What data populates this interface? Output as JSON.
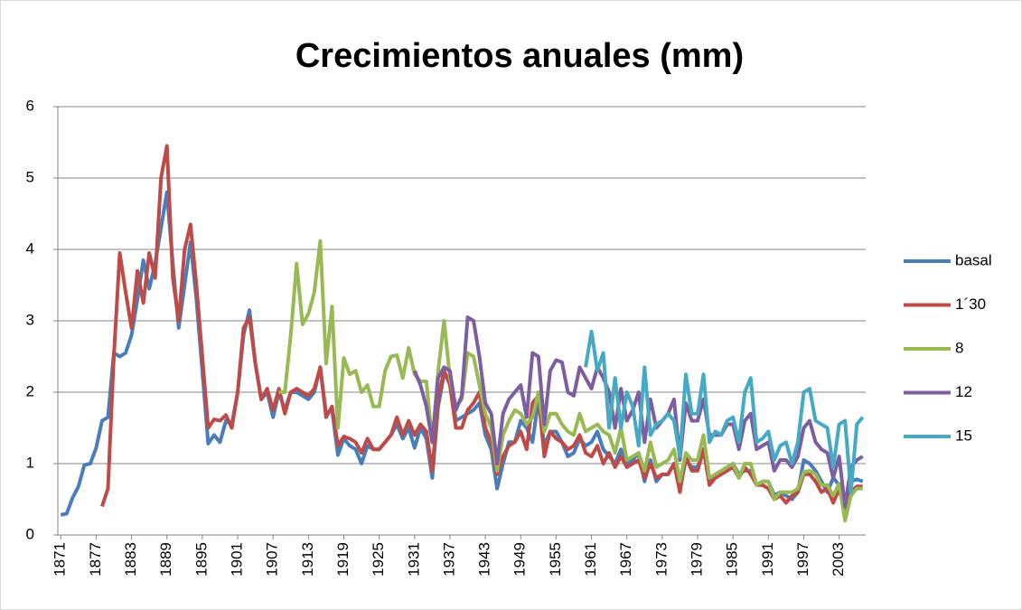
{
  "chart_data": {
    "type": "line",
    "title": "Crecimientos anuales (mm)",
    "x": [
      1871,
      1872,
      1873,
      1874,
      1875,
      1876,
      1877,
      1878,
      1879,
      1880,
      1881,
      1882,
      1883,
      1884,
      1885,
      1886,
      1887,
      1888,
      1889,
      1890,
      1891,
      1892,
      1893,
      1894,
      1895,
      1896,
      1897,
      1898,
      1899,
      1900,
      1901,
      1902,
      1903,
      1904,
      1905,
      1906,
      1907,
      1908,
      1909,
      1910,
      1911,
      1912,
      1913,
      1914,
      1915,
      1916,
      1917,
      1918,
      1919,
      1920,
      1921,
      1922,
      1923,
      1924,
      1925,
      1926,
      1927,
      1928,
      1929,
      1930,
      1931,
      1932,
      1933,
      1934,
      1935,
      1936,
      1937,
      1938,
      1939,
      1940,
      1941,
      1942,
      1943,
      1944,
      1945,
      1946,
      1947,
      1948,
      1949,
      1950,
      1951,
      1952,
      1953,
      1954,
      1955,
      1956,
      1957,
      1958,
      1959,
      1960,
      1961,
      1962,
      1963,
      1964,
      1965,
      1966,
      1967,
      1968,
      1969,
      1970,
      1971,
      1972,
      1973,
      1974,
      1975,
      1976,
      1977,
      1978,
      1979,
      1980,
      1981,
      1982,
      1983,
      1984,
      1985,
      1986,
      1987,
      1988,
      1989,
      1990,
      1991,
      1992,
      1993,
      1994,
      1995,
      1996,
      1997,
      1998,
      1999,
      2000,
      2001,
      2002,
      2003,
      2004,
      2005,
      2006,
      2007
    ],
    "xlim": [
      1870.5,
      2007.5
    ],
    "xticks": [
      1871,
      1877,
      1883,
      1889,
      1895,
      1901,
      1907,
      1913,
      1919,
      1925,
      1931,
      1937,
      1943,
      1949,
      1955,
      1961,
      1967,
      1973,
      1979,
      1985,
      1991,
      1997,
      2003
    ],
    "ylim": [
      0,
      6
    ],
    "yticks": [
      0,
      1,
      2,
      3,
      4,
      5,
      6
    ],
    "grid": true,
    "legend": "right",
    "series": [
      {
        "name": "basal",
        "color": "#4a7ebb",
        "values": [
          0.28,
          0.3,
          0.52,
          0.68,
          0.98,
          1.0,
          1.22,
          1.6,
          1.65,
          2.55,
          2.5,
          2.55,
          2.8,
          3.3,
          3.85,
          3.45,
          3.8,
          4.3,
          4.8,
          3.8,
          2.9,
          3.5,
          4.1,
          3.3,
          2.3,
          1.28,
          1.4,
          1.3,
          1.6,
          1.55,
          2.0,
          2.8,
          3.15,
          2.4,
          1.9,
          2.0,
          1.65,
          2.0,
          1.75,
          2.0,
          2.0,
          1.95,
          1.9,
          2.0,
          2.35,
          1.7,
          1.75,
          1.12,
          1.35,
          1.25,
          1.2,
          1.0,
          1.25,
          1.2,
          1.2,
          1.3,
          1.4,
          1.55,
          1.35,
          1.5,
          1.22,
          1.5,
          1.35,
          0.8,
          1.8,
          2.25,
          2.2,
          1.6,
          1.65,
          1.7,
          1.75,
          1.85,
          1.4,
          1.2,
          0.65,
          1.0,
          1.3,
          1.3,
          1.6,
          1.5,
          1.3,
          1.9,
          1.25,
          1.45,
          1.45,
          1.3,
          1.1,
          1.15,
          1.35,
          1.25,
          1.3,
          1.45,
          1.2,
          1.1,
          1.0,
          1.2,
          1.0,
          1.05,
          1.15,
          0.75,
          1.05,
          0.75,
          0.85,
          0.85,
          1.0,
          0.65,
          1.05,
          0.95,
          0.95,
          1.2,
          0.75,
          0.8,
          0.85,
          0.9,
          1.0,
          0.85,
          0.9,
          0.9,
          0.7,
          0.75,
          0.75,
          0.55,
          0.6,
          0.55,
          0.5,
          0.6,
          1.05,
          1.0,
          0.9,
          0.75,
          0.6,
          0.8,
          0.7,
          0.3,
          0.75,
          0.78,
          0.75
        ]
      },
      {
        "name": "1´30",
        "color": "#be4b48",
        "values": [
          null,
          null,
          null,
          null,
          null,
          null,
          null,
          0.4,
          0.65,
          2.5,
          3.95,
          3.4,
          2.9,
          3.7,
          3.25,
          3.95,
          3.6,
          5.0,
          5.45,
          3.6,
          3.0,
          4.0,
          4.35,
          3.5,
          2.5,
          1.5,
          1.62,
          1.6,
          1.68,
          1.5,
          2.0,
          2.9,
          3.05,
          2.4,
          1.9,
          2.05,
          1.75,
          2.05,
          1.7,
          2.0,
          2.05,
          2.0,
          1.95,
          2.05,
          2.35,
          1.65,
          1.8,
          1.25,
          1.38,
          1.35,
          1.3,
          1.15,
          1.35,
          1.2,
          1.2,
          1.3,
          1.4,
          1.65,
          1.4,
          1.6,
          1.4,
          1.55,
          1.45,
          0.9,
          1.9,
          2.3,
          2.1,
          1.5,
          1.5,
          1.75,
          1.85,
          2.0,
          1.5,
          1.3,
          0.85,
          1.1,
          1.25,
          1.3,
          1.45,
          1.2,
          1.85,
          1.95,
          1.1,
          1.45,
          1.35,
          1.3,
          1.2,
          1.25,
          1.4,
          1.15,
          1.1,
          1.25,
          1.0,
          1.15,
          0.95,
          1.1,
          0.95,
          1.0,
          1.05,
          0.8,
          1.0,
          0.8,
          0.85,
          0.85,
          1.0,
          0.6,
          1.1,
          0.9,
          0.9,
          1.2,
          0.7,
          0.8,
          0.85,
          0.9,
          0.95,
          0.8,
          0.95,
          0.85,
          0.7,
          0.7,
          0.65,
          0.5,
          0.55,
          0.45,
          0.55,
          0.6,
          0.85,
          0.85,
          0.75,
          0.6,
          0.65,
          0.45,
          0.65,
          0.3,
          0.6,
          0.68,
          0.68
        ]
      },
      {
        "name": "8",
        "color": "#98b954",
        "values": [
          null,
          null,
          null,
          null,
          null,
          null,
          null,
          null,
          null,
          null,
          null,
          null,
          null,
          null,
          null,
          null,
          null,
          null,
          null,
          null,
          null,
          null,
          null,
          null,
          null,
          null,
          null,
          null,
          null,
          null,
          null,
          null,
          null,
          null,
          null,
          null,
          null,
          2.0,
          2.0,
          2.8,
          3.8,
          2.95,
          3.1,
          3.4,
          4.12,
          2.4,
          3.2,
          1.5,
          2.48,
          2.25,
          2.3,
          2.0,
          2.1,
          1.8,
          1.8,
          2.3,
          2.5,
          2.52,
          2.2,
          2.62,
          2.25,
          2.15,
          2.15,
          1.3,
          2.3,
          3.0,
          2.2,
          1.8,
          1.9,
          2.55,
          2.5,
          2.1,
          1.7,
          1.5,
          0.9,
          1.4,
          1.6,
          1.75,
          1.7,
          1.55,
          1.65,
          2.0,
          1.45,
          1.7,
          1.7,
          1.55,
          1.45,
          1.4,
          1.7,
          1.45,
          1.5,
          1.55,
          1.45,
          1.4,
          1.15,
          1.5,
          1.05,
          1.1,
          1.15,
          0.9,
          1.3,
          0.95,
          1.0,
          1.05,
          1.2,
          0.75,
          1.15,
          1.05,
          1.05,
          1.4,
          0.8,
          0.85,
          0.9,
          0.95,
          1.0,
          0.8,
          1.0,
          1.0,
          0.7,
          0.75,
          0.75,
          0.5,
          0.6,
          0.6,
          0.6,
          0.65,
          0.88,
          0.9,
          0.85,
          0.7,
          0.7,
          0.55,
          0.72,
          0.2,
          0.55,
          0.65,
          0.65
        ]
      },
      {
        "name": "12",
        "color": "#7d5fa0",
        "values": [
          null,
          null,
          null,
          null,
          null,
          null,
          null,
          null,
          null,
          null,
          null,
          null,
          null,
          null,
          null,
          null,
          null,
          null,
          null,
          null,
          null,
          null,
          null,
          null,
          null,
          null,
          null,
          null,
          null,
          null,
          null,
          null,
          null,
          null,
          null,
          null,
          null,
          null,
          null,
          null,
          null,
          null,
          null,
          null,
          null,
          null,
          null,
          null,
          null,
          null,
          null,
          null,
          null,
          null,
          null,
          null,
          null,
          null,
          null,
          null,
          2.3,
          2.1,
          1.8,
          1.3,
          2.2,
          2.35,
          2.3,
          1.75,
          1.95,
          3.05,
          3.0,
          2.5,
          1.85,
          1.7,
          1.0,
          1.7,
          1.9,
          2.0,
          2.1,
          1.65,
          2.55,
          2.5,
          1.55,
          2.3,
          2.45,
          2.42,
          2.0,
          1.95,
          2.35,
          2.2,
          2.05,
          2.35,
          2.2,
          2.0,
          1.5,
          2.05,
          1.6,
          1.75,
          2.0,
          1.3,
          1.9,
          1.5,
          1.6,
          1.7,
          1.9,
          1.05,
          1.85,
          1.6,
          1.6,
          1.9,
          1.4,
          1.4,
          1.4,
          1.55,
          1.55,
          1.2,
          1.6,
          1.7,
          1.2,
          1.25,
          1.3,
          0.9,
          1.05,
          1.05,
          0.95,
          1.1,
          1.5,
          1.6,
          1.3,
          1.2,
          1.15,
          0.8,
          1.1,
          0.4,
          0.95,
          1.05,
          1.1
        ]
      },
      {
        "name": "15",
        "color": "#46aac5",
        "values": [
          null,
          null,
          null,
          null,
          null,
          null,
          null,
          null,
          null,
          null,
          null,
          null,
          null,
          null,
          null,
          null,
          null,
          null,
          null,
          null,
          null,
          null,
          null,
          null,
          null,
          null,
          null,
          null,
          null,
          null,
          null,
          null,
          null,
          null,
          null,
          null,
          null,
          null,
          null,
          null,
          null,
          null,
          null,
          null,
          null,
          null,
          null,
          null,
          null,
          null,
          null,
          null,
          null,
          null,
          null,
          null,
          null,
          null,
          null,
          null,
          null,
          null,
          null,
          null,
          null,
          null,
          null,
          null,
          null,
          null,
          null,
          null,
          null,
          null,
          null,
          null,
          null,
          null,
          null,
          null,
          null,
          null,
          null,
          null,
          null,
          null,
          null,
          null,
          null,
          2.35,
          2.85,
          2.3,
          2.55,
          1.5,
          2.2,
          1.5,
          2.0,
          1.8,
          1.25,
          2.35,
          1.4,
          1.55,
          1.6,
          1.7,
          1.6,
          1.1,
          2.25,
          1.7,
          1.7,
          2.25,
          1.3,
          1.45,
          1.4,
          1.6,
          1.65,
          1.3,
          2.0,
          2.2,
          1.3,
          1.35,
          1.45,
          1.05,
          1.25,
          1.3,
          1.0,
          1.3,
          2.0,
          2.05,
          1.6,
          1.55,
          1.5,
          0.95,
          1.55,
          1.6,
          0.6,
          1.55,
          1.65
        ]
      }
    ]
  }
}
